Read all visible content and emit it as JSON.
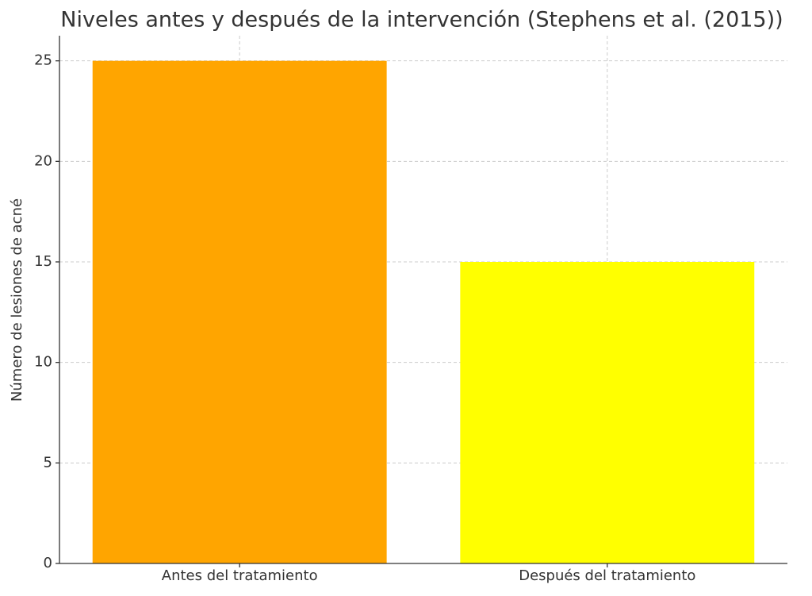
{
  "chart_data": {
    "type": "bar",
    "title": "Niveles antes y después de la intervención (Stephens et al. (2015))",
    "y_label": "Número de lesiones de acné",
    "categories": [
      "Antes del tratamiento",
      "Después del tratamiento"
    ],
    "values": [
      25,
      15
    ],
    "colors": [
      "#ffa500",
      "#ffff00"
    ],
    "ylim": [
      0,
      26.25
    ],
    "yticks": [
      0,
      5,
      10,
      15,
      20,
      25
    ],
    "grid": true
  }
}
